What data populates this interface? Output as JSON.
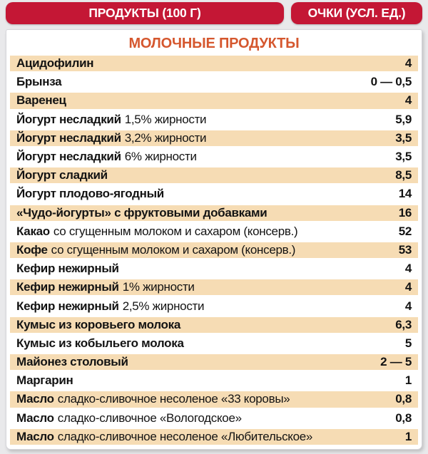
{
  "header": {
    "left_badge": "ПРОДУКТЫ (100 Г)",
    "right_badge": "ОЧКИ (УСЛ. ЕД.)"
  },
  "section": {
    "title": "МОЛОЧНЫЕ ПРОДУКТЫ"
  },
  "colors": {
    "badge_red": "#c41735",
    "row_beige": "#f6dcb4",
    "title_orange": "#d5572e",
    "page_bg": "#e9e9eb",
    "text": "#131313"
  },
  "table": {
    "rows": [
      {
        "name": "Ацидофилин",
        "desc": "",
        "value": "4"
      },
      {
        "name": "Брынза",
        "desc": "",
        "value": "0 — 0,5"
      },
      {
        "name": "Варенец",
        "desc": "",
        "value": "4"
      },
      {
        "name": "Йогурт несладкий",
        "desc": "1,5% жирности",
        "value": "5,9"
      },
      {
        "name": "Йогурт несладкий",
        "desc": "3,2% жирности",
        "value": "3,5"
      },
      {
        "name": "Йогурт несладкий",
        "desc": "6% жирности",
        "value": "3,5"
      },
      {
        "name": "Йогурт сладкий",
        "desc": "",
        "value": "8,5"
      },
      {
        "name": "Йогурт плодово-ягодный",
        "desc": "",
        "value": "14"
      },
      {
        "name": "«Чудо-йогурты» с фруктовыми добавками",
        "desc": "",
        "value": "16"
      },
      {
        "name": "Какао",
        "desc": "со сгущенным молоком и сахаром (консерв.)",
        "value": "52"
      },
      {
        "name": "Кофе",
        "desc": "со сгущенным молоком и сахаром (консерв.)",
        "value": "53"
      },
      {
        "name": "Кефир нежирный",
        "desc": "",
        "value": "4"
      },
      {
        "name": "Кефир нежирный",
        "desc": "1% жирности",
        "value": "4"
      },
      {
        "name": "Кефир нежирный",
        "desc": "2,5% жирности",
        "value": "4"
      },
      {
        "name": "Кумыс из коровьего молока",
        "desc": "",
        "value": "6,3"
      },
      {
        "name": "Кумыс из кобыльего молока",
        "desc": "",
        "value": "5"
      },
      {
        "name": "Майонез столовый",
        "desc": "",
        "value": "2 — 5"
      },
      {
        "name": "Маргарин",
        "desc": "",
        "value": "1"
      },
      {
        "name": "Масло",
        "desc": "сладко-сливочное несоленое «33 коровы»",
        "value": "0,8"
      },
      {
        "name": "Масло",
        "desc": "сладко-сливочное «Вологодское»",
        "value": "0,8"
      },
      {
        "name": "Масло",
        "desc": "сладко-сливочное несоленое «Любительское»",
        "value": "1"
      }
    ]
  }
}
